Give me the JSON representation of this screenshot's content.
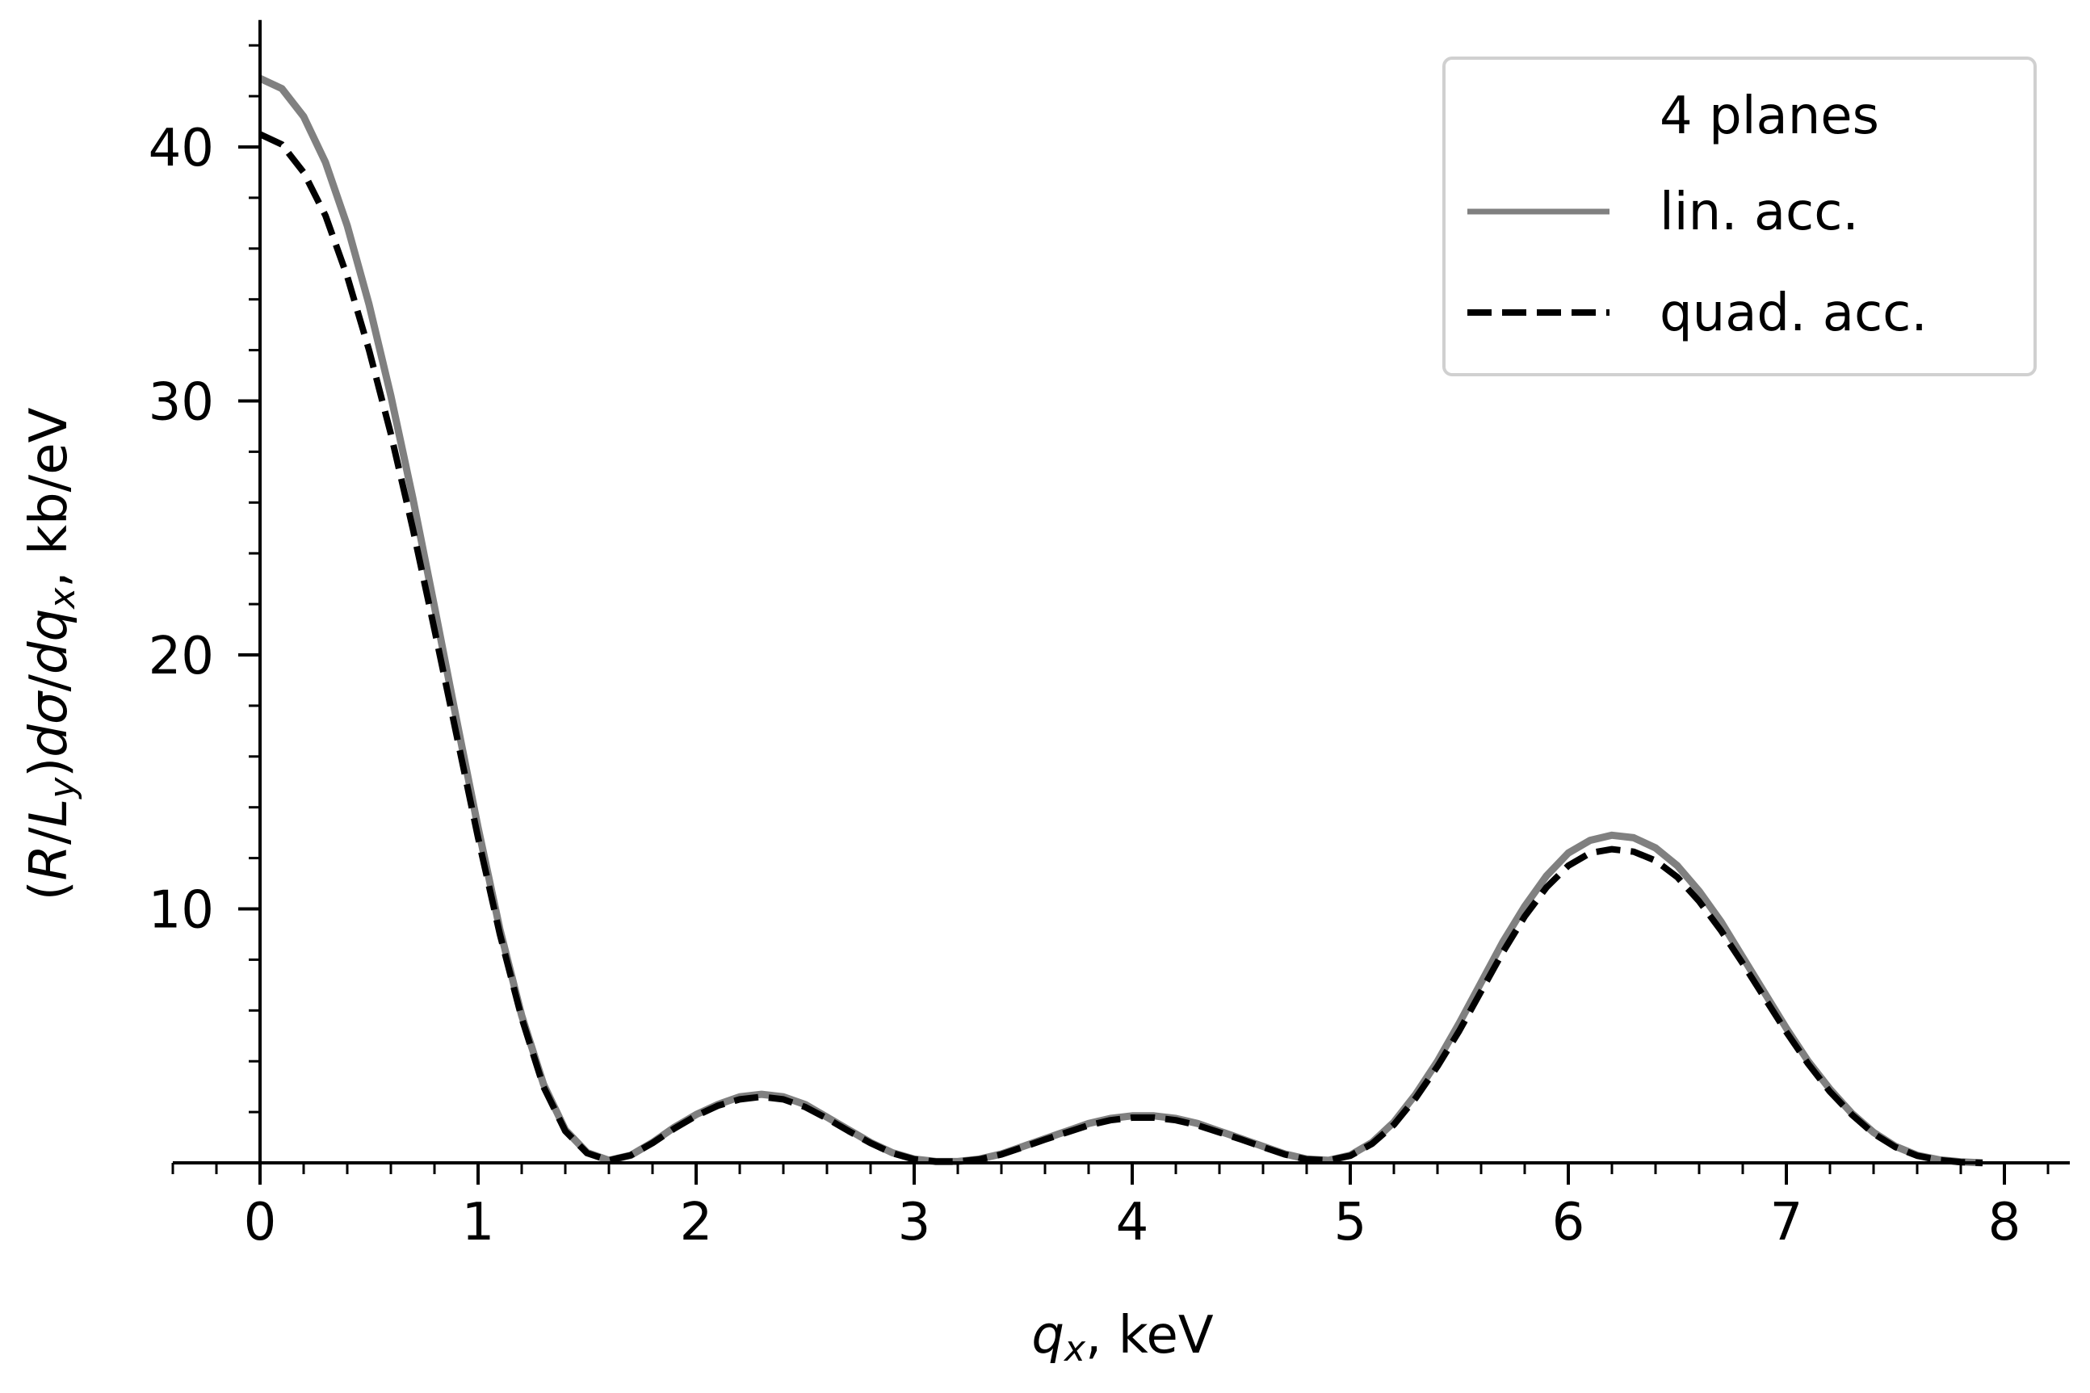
{
  "chart_data": {
    "type": "line",
    "xlabel": {
      "var": "q",
      "sub": "x",
      "unit": ", keV"
    },
    "ylabel": {
      "pre": "(",
      "R": "R",
      "slash": "/",
      "L": "L",
      "Lsub": "y",
      "mid": ")",
      "d1": "d",
      "sigma": "σ",
      "slash2": "/",
      "d2": "d",
      "q": "q",
      "qsub": "x",
      "unit": ", kb/eV"
    },
    "xlim": [
      -0.4,
      8.3
    ],
    "ylim": [
      0,
      45
    ],
    "xticks": [
      0,
      1,
      2,
      3,
      4,
      5,
      6,
      7,
      8
    ],
    "xtick_labels": [
      "0",
      "1",
      "2",
      "3",
      "4",
      "5",
      "6",
      "7",
      "8"
    ],
    "yticks": [
      10,
      20,
      30,
      40
    ],
    "ytick_labels": [
      "10",
      "20",
      "30",
      "40"
    ],
    "x_minor_step": 0.2,
    "y_minor_step": 2,
    "grid": false,
    "legend": {
      "placement": "top-right",
      "title": "4 planes",
      "entries": [
        "lin. acc.",
        "quad. acc."
      ]
    },
    "series": [
      {
        "name": "lin. acc.",
        "color": "#808080",
        "style": "solid",
        "x": [
          0,
          0.1,
          0.2,
          0.3,
          0.4,
          0.5,
          0.6,
          0.7,
          0.8,
          0.9,
          1.0,
          1.1,
          1.2,
          1.3,
          1.4,
          1.5,
          1.6,
          1.7,
          1.8,
          1.9,
          2.0,
          2.1,
          2.2,
          2.3,
          2.4,
          2.5,
          2.6,
          2.7,
          2.8,
          2.9,
          3.0,
          3.1,
          3.2,
          3.3,
          3.4,
          3.5,
          3.6,
          3.7,
          3.8,
          3.9,
          4.0,
          4.1,
          4.2,
          4.3,
          4.4,
          4.5,
          4.6,
          4.7,
          4.8,
          4.9,
          5.0,
          5.1,
          5.2,
          5.3,
          5.4,
          5.5,
          5.6,
          5.7,
          5.8,
          5.9,
          6.0,
          6.1,
          6.2,
          6.3,
          6.4,
          6.5,
          6.6,
          6.7,
          6.8,
          6.9,
          7.0,
          7.1,
          7.2,
          7.3,
          7.4,
          7.5,
          7.6,
          7.7,
          7.8,
          7.9
        ],
        "y": [
          42.7,
          42.3,
          41.2,
          39.4,
          36.9,
          33.8,
          30.2,
          26.2,
          21.9,
          17.5,
          13.2,
          9.2,
          5.8,
          3.1,
          1.3,
          0.4,
          0.1,
          0.3,
          0.8,
          1.4,
          1.9,
          2.3,
          2.6,
          2.7,
          2.6,
          2.3,
          1.8,
          1.3,
          0.8,
          0.4,
          0.15,
          0.05,
          0.05,
          0.15,
          0.35,
          0.65,
          0.95,
          1.25,
          1.55,
          1.75,
          1.85,
          1.85,
          1.75,
          1.55,
          1.25,
          0.95,
          0.65,
          0.35,
          0.15,
          0.1,
          0.3,
          0.8,
          1.6,
          2.7,
          4.0,
          5.5,
          7.1,
          8.7,
          10.1,
          11.3,
          12.2,
          12.7,
          12.9,
          12.8,
          12.4,
          11.7,
          10.7,
          9.5,
          8.1,
          6.7,
          5.3,
          4.0,
          2.9,
          1.95,
          1.2,
          0.65,
          0.3,
          0.12,
          0.04,
          0.0
        ]
      },
      {
        "name": "quad. acc.",
        "color": "#000000",
        "style": "dashed",
        "x": [
          0,
          0.1,
          0.2,
          0.3,
          0.4,
          0.5,
          0.6,
          0.7,
          0.8,
          0.9,
          1.0,
          1.1,
          1.2,
          1.3,
          1.4,
          1.5,
          1.6,
          1.7,
          1.8,
          1.9,
          2.0,
          2.1,
          2.2,
          2.3,
          2.4,
          2.5,
          2.6,
          2.7,
          2.8,
          2.9,
          3.0,
          3.1,
          3.2,
          3.3,
          3.4,
          3.5,
          3.6,
          3.7,
          3.8,
          3.9,
          4.0,
          4.1,
          4.2,
          4.3,
          4.4,
          4.5,
          4.6,
          4.7,
          4.8,
          4.9,
          5.0,
          5.1,
          5.2,
          5.3,
          5.4,
          5.5,
          5.6,
          5.7,
          5.8,
          5.9,
          6.0,
          6.1,
          6.2,
          6.3,
          6.4,
          6.5,
          6.6,
          6.7,
          6.8,
          6.9,
          7.0,
          7.1,
          7.2,
          7.3,
          7.4,
          7.5,
          7.6,
          7.7,
          7.8,
          7.9
        ],
        "y": [
          40.5,
          40.1,
          39.0,
          37.3,
          34.9,
          32.0,
          28.7,
          25.0,
          21.0,
          16.9,
          12.8,
          9.0,
          5.7,
          3.0,
          1.25,
          0.38,
          0.1,
          0.3,
          0.78,
          1.35,
          1.85,
          2.25,
          2.5,
          2.6,
          2.5,
          2.2,
          1.75,
          1.25,
          0.78,
          0.38,
          0.14,
          0.05,
          0.05,
          0.14,
          0.33,
          0.62,
          0.92,
          1.2,
          1.48,
          1.68,
          1.78,
          1.78,
          1.68,
          1.48,
          1.2,
          0.92,
          0.62,
          0.33,
          0.14,
          0.1,
          0.28,
          0.75,
          1.5,
          2.55,
          3.8,
          5.2,
          6.75,
          8.3,
          9.7,
          10.85,
          11.7,
          12.2,
          12.35,
          12.25,
          11.9,
          11.25,
          10.3,
          9.15,
          7.85,
          6.5,
          5.15,
          3.9,
          2.8,
          1.9,
          1.15,
          0.62,
          0.28,
          0.11,
          0.03,
          0.0
        ]
      }
    ]
  }
}
